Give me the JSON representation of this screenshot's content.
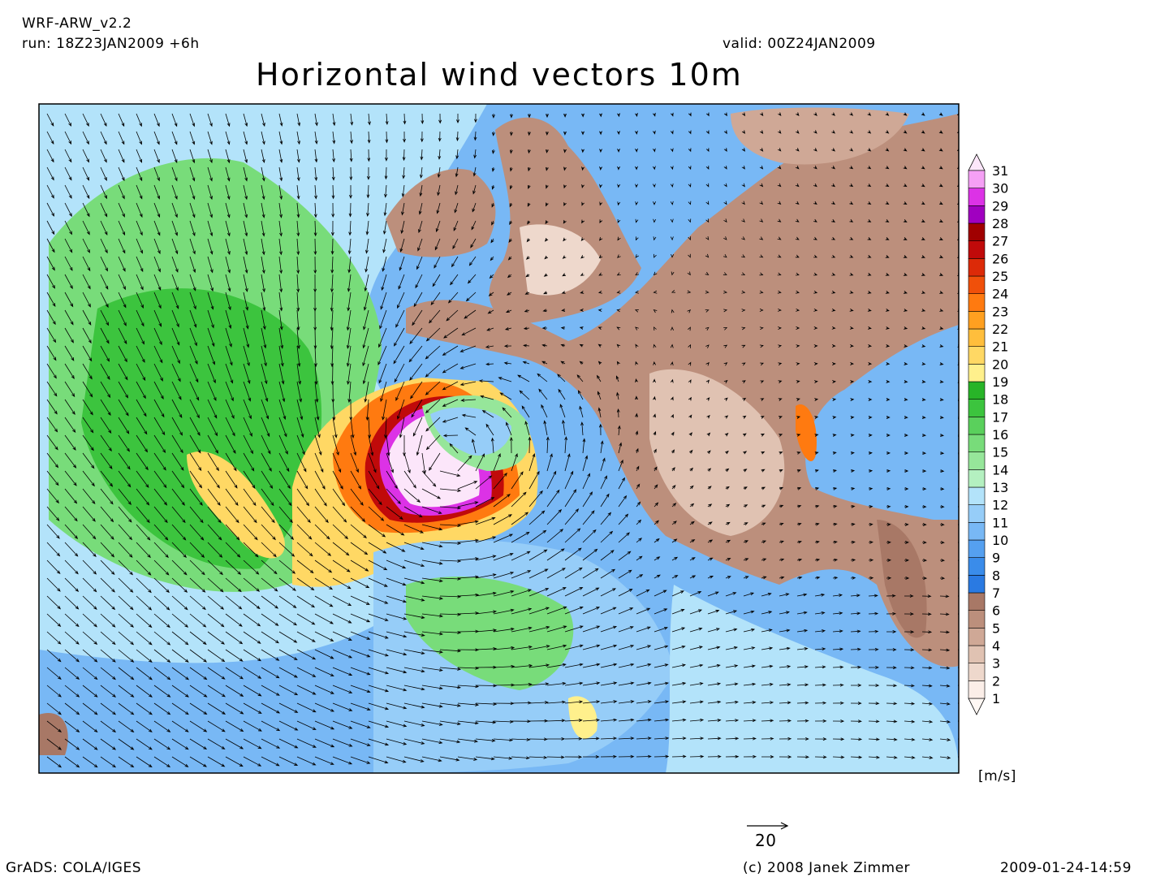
{
  "header": {
    "model": "WRF-ARW_v2.2",
    "run": "run: 18Z23JAN2009 +6h",
    "valid": "valid: 00Z24JAN2009",
    "title": "Horizontal wind vectors 10m"
  },
  "colorbar": {
    "levels": [
      1,
      2,
      3,
      4,
      5,
      6,
      7,
      8,
      9,
      10,
      11,
      12,
      13,
      14,
      15,
      16,
      17,
      18,
      19,
      20,
      21,
      22,
      23,
      24,
      25,
      26,
      27,
      28,
      29,
      30,
      31
    ],
    "colors": [
      "#fff8f4",
      "#fbeee8",
      "#eed8cc",
      "#e0c2b2",
      "#cfa896",
      "#bc8f7c",
      "#a87866",
      "#2a7ae2",
      "#3a8cea",
      "#55a0f0",
      "#78b8f5",
      "#96cdf8",
      "#b3e3fa",
      "#b4f0c0",
      "#96e69a",
      "#78dc7a",
      "#5ad05c",
      "#3cc43e",
      "#28b428",
      "#fff08c",
      "#ffd864",
      "#ffbe3c",
      "#ffa020",
      "#ff7a10",
      "#f0500a",
      "#dc2a08",
      "#c00a0a",
      "#a00000",
      "#a000c0",
      "#dc32e6",
      "#f5a0f5",
      "#fce6fa"
    ],
    "unit": "[m/s]"
  },
  "reference_vector": {
    "value": 20
  },
  "footer": {
    "software": "GrADS: COLA/IGES",
    "credit": "(c) 2008 Janek Zimmer",
    "timestamp": "2009-01-24-14:59"
  }
}
